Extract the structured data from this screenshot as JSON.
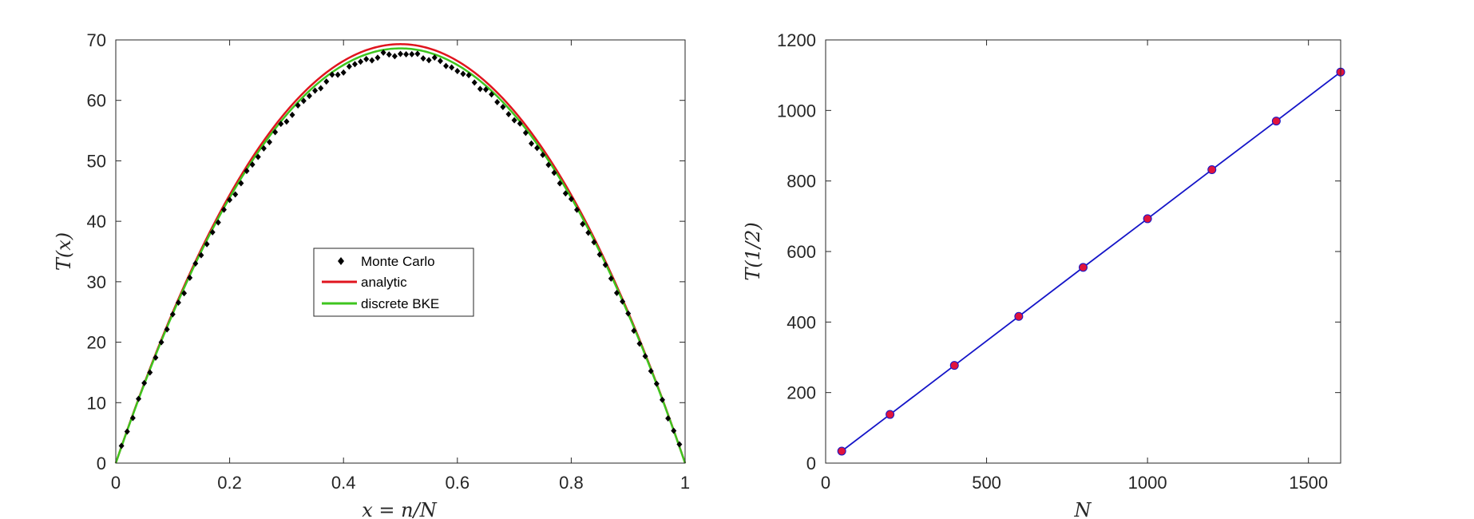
{
  "chart_data": [
    {
      "type": "line",
      "xlabel": "x = n/N",
      "ylabel": "T(x)",
      "xlim": [
        0,
        1
      ],
      "ylim": [
        0,
        70
      ],
      "xticks": [
        "0",
        "0.2",
        "0.4",
        "0.6",
        "0.8",
        "1"
      ],
      "yticks": [
        "0",
        "10",
        "20",
        "30",
        "40",
        "50",
        "60",
        "70"
      ],
      "grid": false,
      "legend_position": "center",
      "series": [
        {
          "name": "Monte Carlo",
          "style": "markers",
          "color": "#000000",
          "N": 100,
          "x_start": 0.01,
          "x_end": 0.99,
          "x_step": 0.01,
          "scale_of_peak": 272
        },
        {
          "name": "analytic",
          "style": "line",
          "color": "#e0141e",
          "peak": 69.3
        },
        {
          "name": "discrete BKE",
          "style": "line",
          "color": "#3ec51e",
          "peak": 68.6
        }
      ]
    },
    {
      "type": "scatter",
      "xlabel": "N",
      "ylabel": "T(1/2)",
      "xlim": [
        0,
        1600
      ],
      "ylim": [
        0,
        1200
      ],
      "xticks": [
        "0",
        "500",
        "1000",
        "1500"
      ],
      "yticks": [
        "0",
        "200",
        "400",
        "600",
        "800",
        "1000",
        "1200"
      ],
      "grid": false,
      "line_color": "#1414c8",
      "marker_color": "#e0143c",
      "x": [
        50,
        200,
        400,
        600,
        800,
        1000,
        1200,
        1400,
        1600
      ],
      "y": [
        34,
        138,
        277,
        416,
        555,
        693,
        832,
        970,
        1109
      ]
    }
  ]
}
